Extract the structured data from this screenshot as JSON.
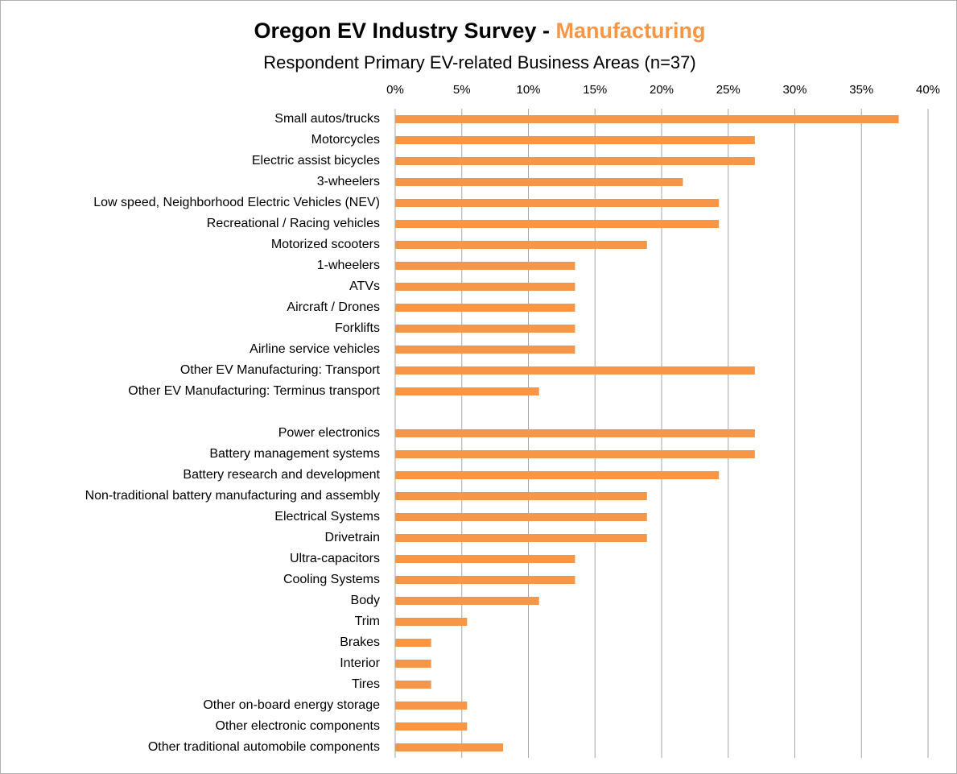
{
  "chart_data": {
    "type": "hbar",
    "title": "Oregon EV Industry Survey -",
    "title_highlight": "Manufacturing",
    "subtitle": "Respondent  Primary EV-related Business Areas (n=37)",
    "categories": [
      "Small autos/trucks",
      "Motorcycles",
      "Electric assist bicycles",
      "3-wheelers",
      "Low speed, Neighborhood Electric Vehicles (NEV)",
      "Recreational / Racing vehicles",
      "Motorized scooters",
      "1-wheelers",
      "ATVs",
      "Aircraft / Drones",
      "Forklifts",
      "Airline service vehicles",
      "Other EV Manufacturing: Transport",
      "Other EV Manufacturing: Terminus transport",
      null,
      "Power electronics",
      "Battery management systems",
      "Battery research and development",
      "Non-traditional battery manufacturing and assembly",
      "Electrical Systems",
      "Drivetrain",
      "Ultra-capacitors",
      "Cooling Systems",
      "Body",
      "Trim",
      "Brakes",
      "Interior",
      "Tires",
      "Other on-board energy storage",
      "Other electronic components",
      "Other traditional automobile components"
    ],
    "values": [
      37.8,
      27.0,
      27.0,
      21.6,
      24.3,
      24.3,
      18.9,
      13.5,
      13.5,
      13.5,
      13.5,
      13.5,
      27.0,
      10.8,
      null,
      27.0,
      27.0,
      24.3,
      18.9,
      18.9,
      18.9,
      13.5,
      13.5,
      10.8,
      5.4,
      2.7,
      2.7,
      2.7,
      5.4,
      5.4,
      8.1
    ],
    "color": "#f79646",
    "title_highlight_color": "#f79646",
    "xlim": [
      0,
      40
    ],
    "xticks": [
      {
        "value": 0,
        "label": "0%"
      },
      {
        "value": 5,
        "label": "5%"
      },
      {
        "value": 10,
        "label": "10%"
      },
      {
        "value": 15,
        "label": "15%"
      },
      {
        "value": 20,
        "label": "20%"
      },
      {
        "value": 25,
        "label": "25%"
      },
      {
        "value": 30,
        "label": "30%"
      },
      {
        "value": 35,
        "label": "35%"
      },
      {
        "value": 40,
        "label": "40%"
      }
    ],
    "grid": true
  }
}
